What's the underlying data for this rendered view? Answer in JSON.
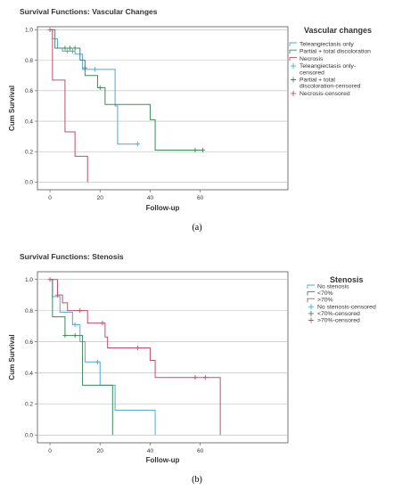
{
  "chart_data": [
    {
      "type": "line",
      "title": "Survival Functions: Vascular Changes",
      "xlabel": "Follow-up",
      "ylabel": "Cum Survival",
      "xlim": [
        -5,
        95
      ],
      "ylim": [
        -0.05,
        1.02
      ],
      "x_ticks": [
        "0",
        "20",
        "40",
        "60"
      ],
      "x_tick_values": [
        0,
        20,
        40,
        60
      ],
      "y_ticks": [
        "0.0",
        "0.2",
        "0.4",
        "0.6",
        "0.8",
        "1.0"
      ],
      "y_tick_values": [
        0,
        0.2,
        0.4,
        0.6,
        0.8,
        1.0
      ],
      "grid": "horizontal",
      "legend_title": "Vascular changes",
      "legend_entries": [
        "Teleangiectasis only",
        "Partial + total discoloration",
        "Necrosis",
        "Teleangiectasis only-censored",
        "Partial + total discoloration-censored",
        "Necrosis-censored"
      ],
      "series": [
        {
          "name": "Teleangiectasis only",
          "color": "#4fa8d8",
          "steps": [
            [
              0,
              1.0
            ],
            [
              1,
              0.94
            ],
            [
              3,
              0.88
            ],
            [
              5,
              0.86
            ],
            [
              10,
              0.84
            ],
            [
              13,
              0.74
            ],
            [
              26,
              0.5
            ],
            [
              27,
              0.25
            ],
            [
              35,
              0.25
            ]
          ],
          "censored": [
            [
              7,
              0.86
            ],
            [
              9,
              0.86
            ],
            [
              18,
              0.74
            ],
            [
              35,
              0.25
            ]
          ]
        },
        {
          "name": "Partial + total discoloration",
          "color": "#3d8a5a",
          "steps": [
            [
              0,
              1.0
            ],
            [
              2,
              0.88
            ],
            [
              12,
              0.8
            ],
            [
              14,
              0.7
            ],
            [
              19,
              0.62
            ],
            [
              22,
              0.51
            ],
            [
              25,
              0.51
            ],
            [
              40,
              0.41
            ],
            [
              42,
              0.21
            ],
            [
              61,
              0.21
            ]
          ],
          "censored": [
            [
              6,
              0.88
            ],
            [
              8,
              0.88
            ],
            [
              10,
              0.88
            ],
            [
              14,
              0.75
            ],
            [
              20,
              0.62
            ],
            [
              58,
              0.21
            ],
            [
              61,
              0.21
            ]
          ]
        },
        {
          "name": "Necrosis",
          "color": "#c0506a",
          "steps": [
            [
              0,
              1.0
            ],
            [
              1,
              0.67
            ],
            [
              6,
              0.33
            ],
            [
              10,
              0.17
            ],
            [
              15,
              0.0
            ]
          ],
          "censored": [
            [
              0,
              1.0
            ]
          ]
        }
      ]
    },
    {
      "type": "line",
      "title": "Survival Functions: Stenosis",
      "xlabel": "Follow-up",
      "ylabel": "Cum Survival",
      "xlim": [
        -5,
        95
      ],
      "ylim": [
        -0.05,
        1.05
      ],
      "x_ticks": [
        "0",
        "20",
        "40",
        "60"
      ],
      "x_tick_values": [
        0,
        20,
        40,
        60
      ],
      "y_ticks": [
        "0.0",
        "0.2",
        "0.4",
        "0.6",
        "0.8",
        "1.0"
      ],
      "y_tick_values": [
        0,
        0.2,
        0.4,
        0.6,
        0.8,
        1.0
      ],
      "grid": "horizontal",
      "legend_title": "Stenosis",
      "legend_entries": [
        "No stenosis",
        "<70%",
        ">70%",
        "No stenosis-censored",
        "<70%-censored",
        ">70%-censored"
      ],
      "series": [
        {
          "name": "No stenosis",
          "color": "#4fa8d8",
          "steps": [
            [
              0,
              1.0
            ],
            [
              1,
              0.89
            ],
            [
              4,
              0.79
            ],
            [
              9,
              0.71
            ],
            [
              12,
              0.6
            ],
            [
              14,
              0.47
            ],
            [
              20,
              0.32
            ],
            [
              26,
              0.16
            ],
            [
              42,
              0.0
            ]
          ],
          "censored": [
            [
              10,
              0.71
            ],
            [
              19,
              0.47
            ]
          ]
        },
        {
          "name": "<70%",
          "color": "#3d8a5a",
          "steps": [
            [
              0,
              1.0
            ],
            [
              1,
              0.76
            ],
            [
              6,
              0.64
            ],
            [
              13,
              0.32
            ],
            [
              25,
              0.0
            ]
          ],
          "censored": [
            [
              6,
              0.64
            ],
            [
              10,
              0.64
            ]
          ]
        },
        {
          "name": ">70%",
          "color": "#c0506a",
          "steps": [
            [
              0,
              1.0
            ],
            [
              3,
              0.9
            ],
            [
              5,
              0.85
            ],
            [
              7,
              0.8
            ],
            [
              15,
              0.72
            ],
            [
              22,
              0.63
            ],
            [
              23,
              0.56
            ],
            [
              40,
              0.48
            ],
            [
              42,
              0.37
            ],
            [
              68,
              0.0
            ]
          ],
          "censored": [
            [
              0,
              1.0
            ],
            [
              3,
              0.9
            ],
            [
              12,
              0.8
            ],
            [
              21,
              0.72
            ],
            [
              35,
              0.56
            ],
            [
              58,
              0.37
            ],
            [
              62,
              0.37
            ]
          ]
        }
      ]
    }
  ],
  "captions": [
    "(a)",
    "(b)"
  ]
}
